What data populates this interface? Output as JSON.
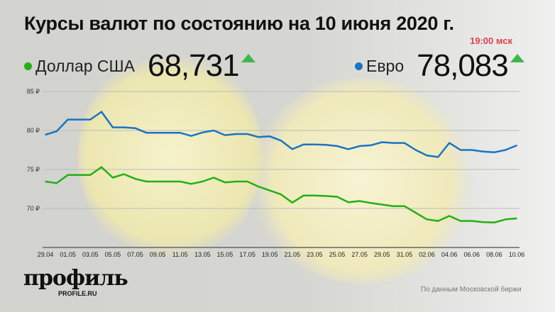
{
  "header": {
    "title": "Курсы валют по состоянию на 10 июня 2020 г.",
    "time": "19:00 мск"
  },
  "legend": [
    {
      "name": "Доллар США",
      "value": "68,731",
      "trend": "up",
      "color": "#22b014"
    },
    {
      "name": "Евро",
      "value": "78,083",
      "trend": "up",
      "color": "#1a74c4"
    }
  ],
  "colors": {
    "up_arrow": "#3cb84a",
    "time": "#e0404a"
  },
  "footer": {
    "logo": "профиль",
    "logo_sub": "PROFILE.RU",
    "source": "По данным Московской биржи"
  },
  "chart_data": {
    "type": "line",
    "title": "Курсы валют по состоянию на 10 июня 2020 г.",
    "xlabel": "",
    "ylabel": "",
    "ylim": [
      65,
      85
    ],
    "yticks": [
      {
        "v": 85,
        "label": "85 ₽"
      },
      {
        "v": 80,
        "label": "80 ₽"
      },
      {
        "v": 75,
        "label": "75 ₽"
      },
      {
        "v": 70,
        "label": "70 ₽"
      }
    ],
    "grid": true,
    "categories": [
      "29.04",
      "30.04",
      "01.05",
      "02.05",
      "03.05",
      "04.05",
      "05.05",
      "06.05",
      "07.05",
      "08.05",
      "09.05",
      "10.05",
      "11.05",
      "12.05",
      "13.05",
      "14.05",
      "15.05",
      "16.05",
      "17.05",
      "18.05",
      "19.05",
      "20.05",
      "21.05",
      "22.05",
      "23.05",
      "24.05",
      "25.05",
      "26.05",
      "27.05",
      "28.05",
      "29.05",
      "30.05",
      "31.05",
      "01.06",
      "02.06",
      "03.06",
      "04.06",
      "05.06",
      "06.06",
      "07.06",
      "08.06",
      "09.06",
      "10.06"
    ],
    "xtick_labels": [
      "29.04",
      "01.05",
      "03.05",
      "05.05",
      "07.05",
      "09.05",
      "11.05",
      "13.05",
      "15.05",
      "17.05",
      "19.05",
      "21.05",
      "23.05",
      "25.05",
      "27.05",
      "29.05",
      "31.05",
      "02.06",
      "04.06",
      "06.06",
      "08.06",
      "10.06"
    ],
    "series": [
      {
        "name": "Евро",
        "color": "#1a74c4",
        "values": [
          79.45,
          79.9,
          81.4,
          81.4,
          81.4,
          82.4,
          80.4,
          80.4,
          80.3,
          79.7,
          79.7,
          79.7,
          79.7,
          79.3,
          79.75,
          80.0,
          79.4,
          79.55,
          79.55,
          79.15,
          79.25,
          78.7,
          77.6,
          78.2,
          78.2,
          78.15,
          78.0,
          77.6,
          78.0,
          78.1,
          78.5,
          78.4,
          78.4,
          77.5,
          76.8,
          76.6,
          78.4,
          77.5,
          77.5,
          77.3,
          77.2,
          77.5,
          78.083
        ]
      },
      {
        "name": "Доллар США",
        "color": "#22b014",
        "values": [
          73.45,
          73.25,
          74.3,
          74.3,
          74.3,
          75.3,
          73.95,
          74.4,
          73.8,
          73.45,
          73.45,
          73.45,
          73.45,
          73.15,
          73.45,
          73.95,
          73.35,
          73.45,
          73.45,
          72.8,
          72.3,
          71.8,
          70.75,
          71.65,
          71.65,
          71.6,
          71.5,
          70.8,
          70.95,
          70.7,
          70.5,
          70.3,
          70.3,
          69.45,
          68.6,
          68.4,
          69.05,
          68.4,
          68.4,
          68.25,
          68.2,
          68.6,
          68.731
        ]
      }
    ]
  }
}
